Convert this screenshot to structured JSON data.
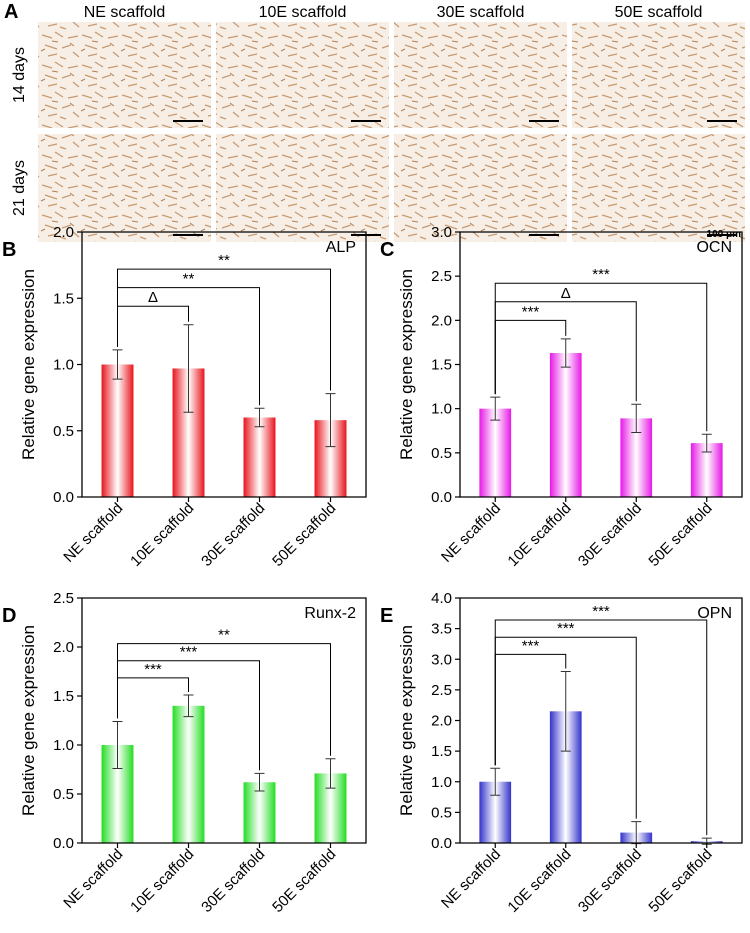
{
  "image_panel": {
    "letter": "A",
    "columns": [
      "NE scaffold",
      "10E scaffold",
      "30E scaffold",
      "50E scaffold"
    ],
    "rows": [
      "14 days",
      "21 days"
    ],
    "scale_label": "100 μm"
  },
  "chart_data": [
    {
      "type": "bar",
      "letter": "B",
      "title": "ALP",
      "ylabel": "Relative gene expression",
      "categories": [
        "NE scaffold",
        "10E scaffold",
        "30E scaffold",
        "50E scaffold"
      ],
      "values": [
        1.0,
        0.97,
        0.6,
        0.58
      ],
      "errors": [
        0.11,
        0.33,
        0.07,
        0.2
      ],
      "color": "#e8141c",
      "ylim": [
        0,
        2
      ],
      "yticks": [
        {
          "value": 0,
          "label": "0.0"
        },
        {
          "value": 0.5,
          "label": "0.5"
        },
        {
          "value": 1,
          "label": "1.0"
        },
        {
          "value": 1.5,
          "label": "1.5"
        },
        {
          "value": 2,
          "label": "2.0"
        }
      ],
      "comparisons": [
        {
          "pair": [
            "NE scaffold",
            "10E scaffold"
          ],
          "label": "Δ"
        },
        {
          "pair": [
            "NE scaffold",
            "30E scaffold"
          ],
          "label": "**"
        },
        {
          "pair": [
            "NE scaffold",
            "50E scaffold"
          ],
          "label": "**"
        }
      ]
    },
    {
      "type": "bar",
      "letter": "C",
      "title": "OCN",
      "ylabel": "Relative gene expression",
      "categories": [
        "NE scaffold",
        "10E scaffold",
        "30E scaffold",
        "50E scaffold"
      ],
      "values": [
        1.0,
        1.63,
        0.89,
        0.61
      ],
      "errors": [
        0.13,
        0.16,
        0.16,
        0.1
      ],
      "color": "#e619e6",
      "ylim": [
        0,
        3
      ],
      "yticks": [
        {
          "value": 0,
          "label": "0.0"
        },
        {
          "value": 0.5,
          "label": "0.5"
        },
        {
          "value": 1,
          "label": "1.0"
        },
        {
          "value": 1.5,
          "label": "1.5"
        },
        {
          "value": 2,
          "label": "2.0"
        },
        {
          "value": 2.5,
          "label": "2.5"
        },
        {
          "value": 3,
          "label": "3.0"
        }
      ],
      "comparisons": [
        {
          "pair": [
            "NE scaffold",
            "10E scaffold"
          ],
          "label": "***"
        },
        {
          "pair": [
            "NE scaffold",
            "30E scaffold"
          ],
          "label": "Δ"
        },
        {
          "pair": [
            "NE scaffold",
            "50E scaffold"
          ],
          "label": "***"
        }
      ]
    },
    {
      "type": "bar",
      "letter": "D",
      "title": "Runx-2",
      "ylabel": "Relative gene expression",
      "categories": [
        "NE scaffold",
        "10E scaffold",
        "30E scaffold",
        "50E scaffold"
      ],
      "values": [
        1.0,
        1.4,
        0.62,
        0.71
      ],
      "errors": [
        0.24,
        0.11,
        0.09,
        0.15
      ],
      "color": "#22dd22",
      "ylim": [
        0,
        2.5
      ],
      "yticks": [
        {
          "value": 0,
          "label": "0.0"
        },
        {
          "value": 0.5,
          "label": "0.5"
        },
        {
          "value": 1,
          "label": "1.0"
        },
        {
          "value": 1.5,
          "label": "1.5"
        },
        {
          "value": 2,
          "label": "2.0"
        },
        {
          "value": 2.5,
          "label": "2.5"
        }
      ],
      "comparisons": [
        {
          "pair": [
            "NE scaffold",
            "10E scaffold"
          ],
          "label": "***"
        },
        {
          "pair": [
            "NE scaffold",
            "30E scaffold"
          ],
          "label": "***"
        },
        {
          "pair": [
            "NE scaffold",
            "50E scaffold"
          ],
          "label": "**"
        }
      ]
    },
    {
      "type": "bar",
      "letter": "E",
      "title": "OPN",
      "ylabel": "Relative gene expression",
      "categories": [
        "NE scaffold",
        "10E scaffold",
        "30E scaffold",
        "50E scaffold"
      ],
      "values": [
        1.0,
        2.15,
        0.17,
        0.03
      ],
      "errors": [
        0.22,
        0.65,
        0.18,
        0.05
      ],
      "color": "#3333cc",
      "ylim": [
        0,
        4
      ],
      "yticks": [
        {
          "value": 0,
          "label": "0.0"
        },
        {
          "value": 0.5,
          "label": "0.5"
        },
        {
          "value": 1,
          "label": "1.0"
        },
        {
          "value": 1.5,
          "label": "1.5"
        },
        {
          "value": 2,
          "label": "2.0"
        },
        {
          "value": 2.5,
          "label": "2.5"
        },
        {
          "value": 3,
          "label": "3.0"
        },
        {
          "value": 3.5,
          "label": "3.5"
        },
        {
          "value": 4,
          "label": "4.0"
        }
      ],
      "comparisons": [
        {
          "pair": [
            "NE scaffold",
            "10E scaffold"
          ],
          "label": "***"
        },
        {
          "pair": [
            "NE scaffold",
            "30E scaffold"
          ],
          "label": "***"
        },
        {
          "pair": [
            "NE scaffold",
            "50E scaffold"
          ],
          "label": "***"
        }
      ]
    }
  ]
}
